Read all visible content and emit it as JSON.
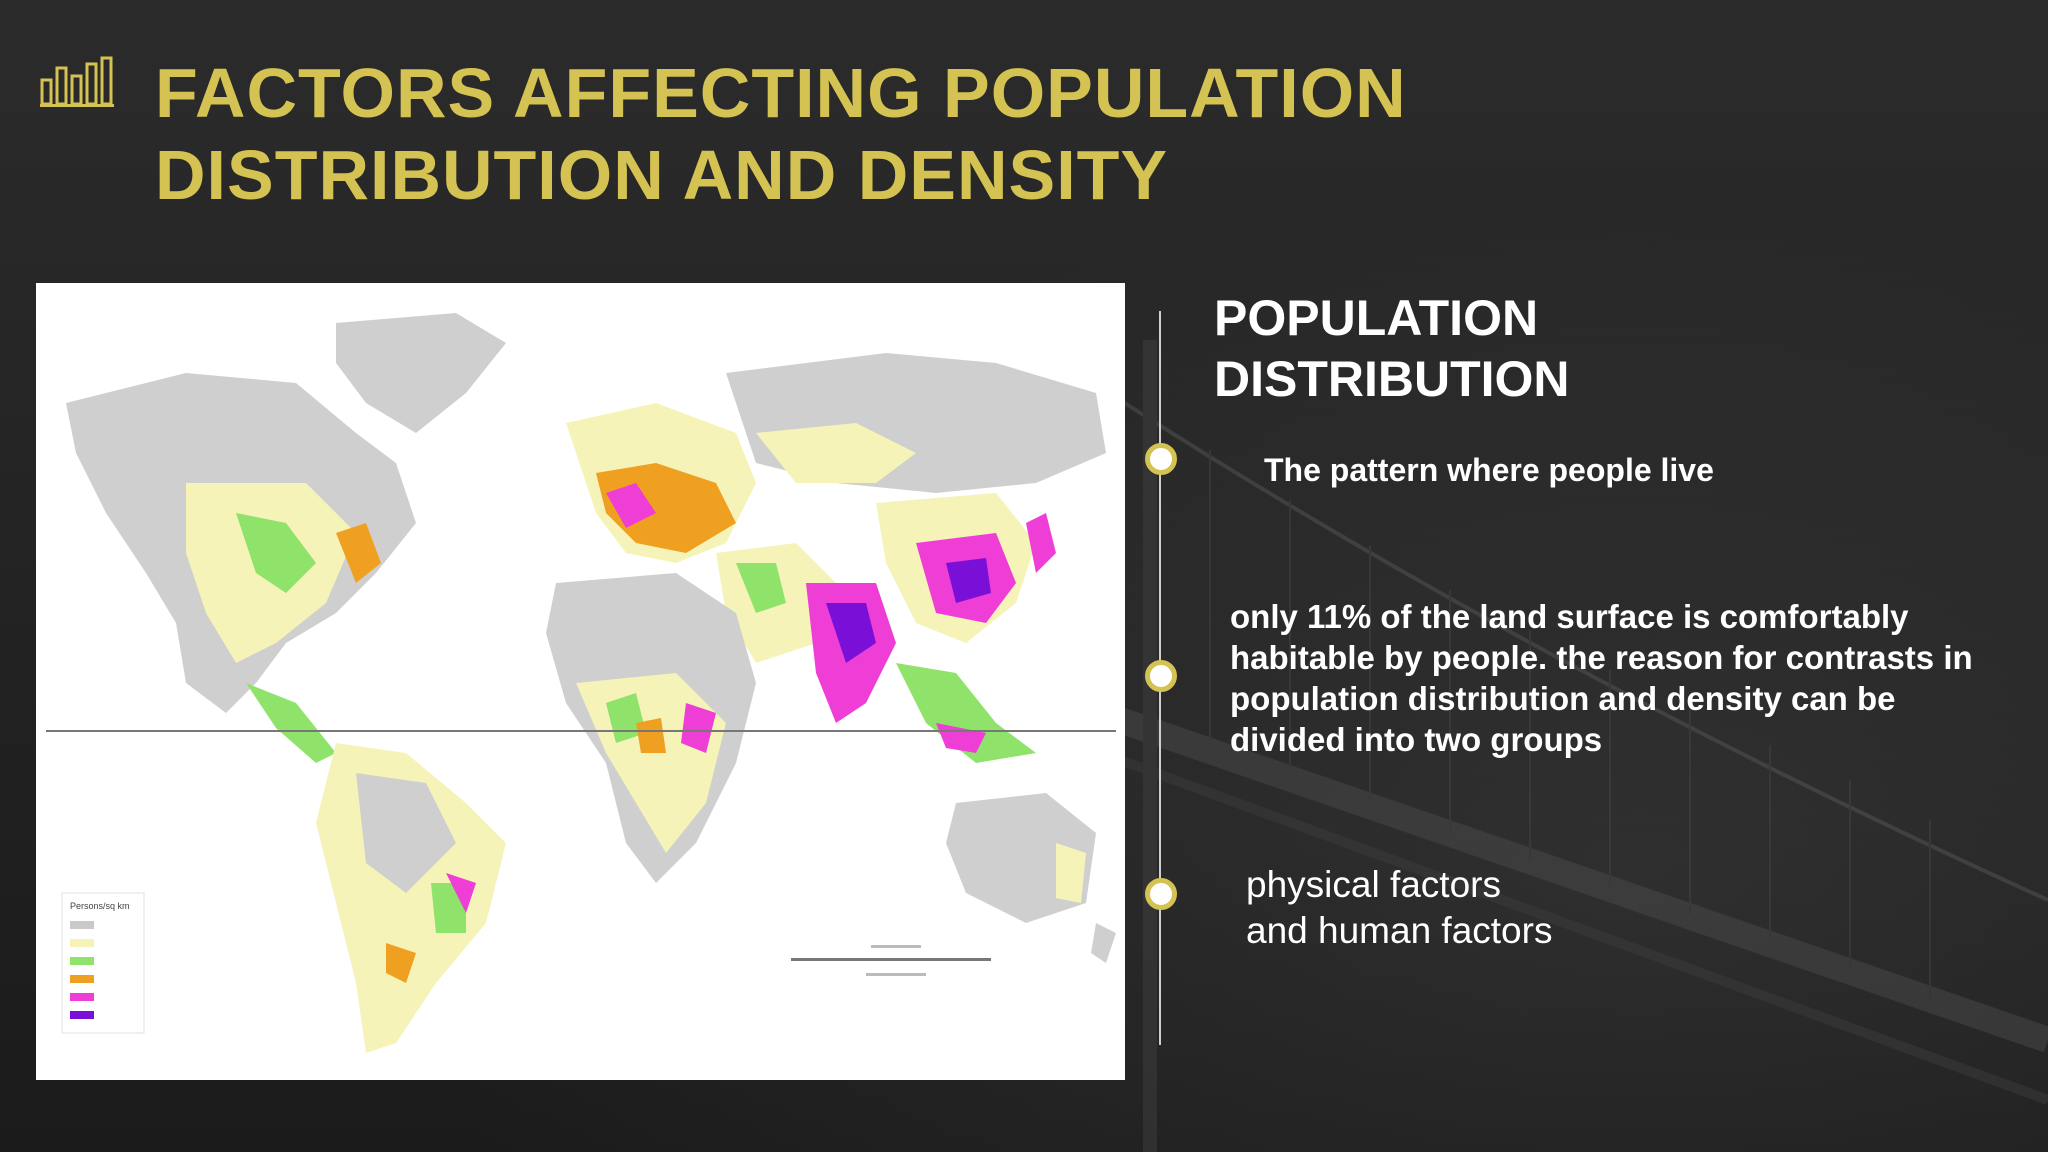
{
  "slide": {
    "title_line1": "FACTORS AFFECTING POPULATION",
    "title_line2": "DISTRIBUTION AND DENSITY",
    "title_icon": "bar-chart-icon",
    "accent_color": "#d4c252"
  },
  "map": {
    "image": "world-population-density-map",
    "legend_title": "Persons/sq km",
    "legend_colors": [
      "#c9c9c9",
      "#f5f3b8",
      "#8fe26a",
      "#f0a020",
      "#ef3ed6",
      "#7a10d8"
    ]
  },
  "content": {
    "heading_line1": "POPULATION",
    "heading_line2": "DISTRIBUTION",
    "bullets": [
      "The pattern where people live",
      "only 11% of the land surface is comfortably habitable by people. the reason for contrasts in population distribution and density can be divided into two groups"
    ],
    "factors_line1": "physical factors",
    "factors_line2": "and human factors"
  }
}
